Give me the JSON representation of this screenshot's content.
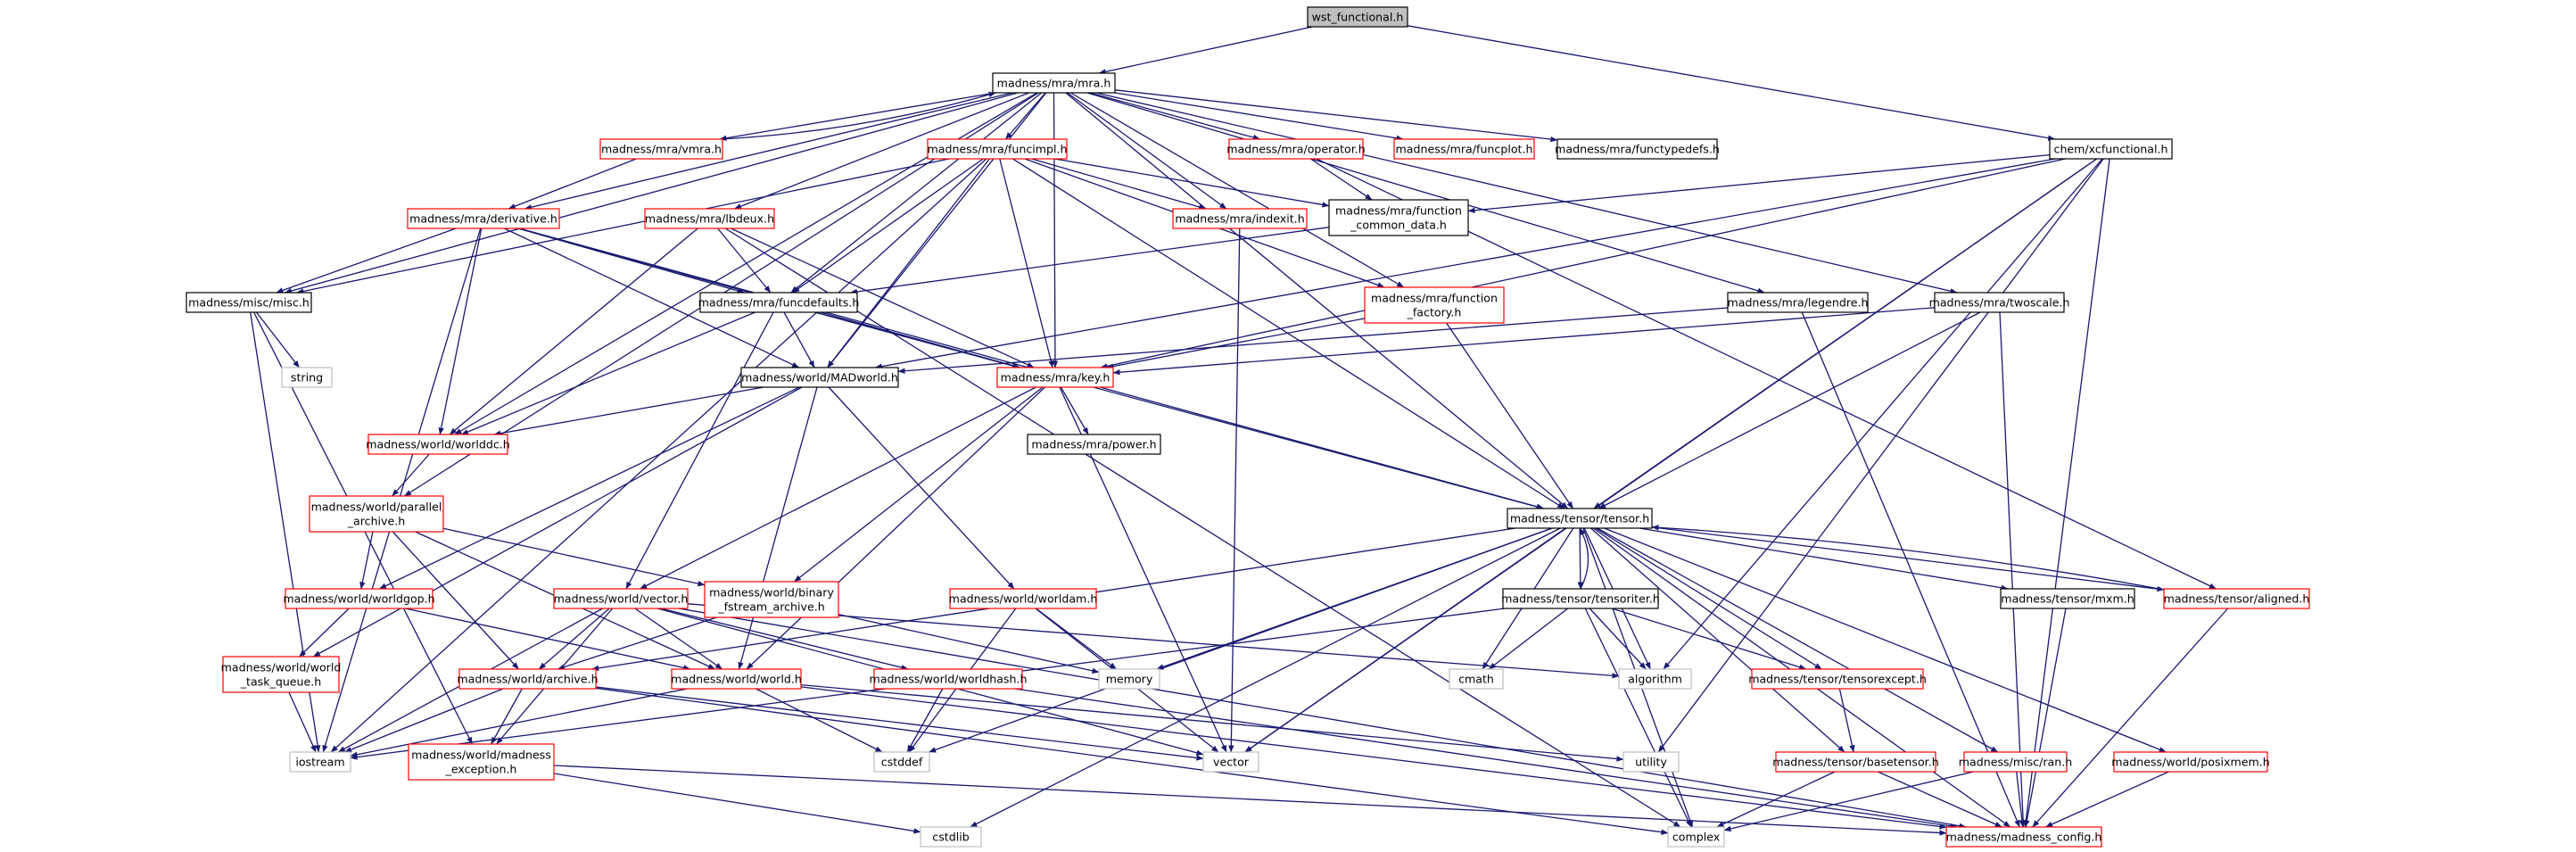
{
  "colors": {
    "edge": "#191970",
    "edge_secondary": "#a9a9a9",
    "border_normal": "#000000",
    "border_truncated": "#ff0000",
    "border_system": "#bfbfbf",
    "fill_root": "#bfbfbf",
    "fill_default": "#ffffff"
  },
  "nodes": [
    {
      "id": "wst_functional",
      "lines": [
        "wst_functional.h"
      ],
      "kind": "root"
    },
    {
      "id": "mra",
      "lines": [
        "madness/mra/mra.h"
      ],
      "kind": "normal"
    },
    {
      "id": "xcfunctional",
      "lines": [
        "chem/xcfunctional.h"
      ],
      "kind": "normal"
    },
    {
      "id": "vmra",
      "lines": [
        "madness/mra/vmra.h"
      ],
      "kind": "truncated"
    },
    {
      "id": "funcimpl",
      "lines": [
        "madness/mra/funcimpl.h"
      ],
      "kind": "truncated"
    },
    {
      "id": "operator",
      "lines": [
        "madness/mra/operator.h"
      ],
      "kind": "truncated"
    },
    {
      "id": "funcplot",
      "lines": [
        "madness/mra/funcplot.h"
      ],
      "kind": "truncated"
    },
    {
      "id": "functypedefs",
      "lines": [
        "madness/mra/functypedefs.h"
      ],
      "kind": "normal"
    },
    {
      "id": "derivative",
      "lines": [
        "madness/mra/derivative.h"
      ],
      "kind": "truncated"
    },
    {
      "id": "lbdeux",
      "lines": [
        "madness/mra/lbdeux.h"
      ],
      "kind": "truncated"
    },
    {
      "id": "indexit",
      "lines": [
        "madness/mra/indexit.h"
      ],
      "kind": "truncated"
    },
    {
      "id": "function_common_data",
      "lines": [
        "madness/mra/function",
        "_common_data.h"
      ],
      "kind": "normal"
    },
    {
      "id": "misc",
      "lines": [
        "madness/misc/misc.h"
      ],
      "kind": "normal"
    },
    {
      "id": "funcdefaults",
      "lines": [
        "madness/mra/funcdefaults.h"
      ],
      "kind": "normal"
    },
    {
      "id": "function_factory",
      "lines": [
        "madness/mra/function",
        "_factory.h"
      ],
      "kind": "truncated"
    },
    {
      "id": "legendre",
      "lines": [
        "madness/mra/legendre.h"
      ],
      "kind": "normal"
    },
    {
      "id": "twoscale",
      "lines": [
        "madness/mra/twoscale.h"
      ],
      "kind": "normal"
    },
    {
      "id": "string",
      "lines": [
        "string"
      ],
      "kind": "system"
    },
    {
      "id": "madworld",
      "lines": [
        "madness/world/MADworld.h"
      ],
      "kind": "normal"
    },
    {
      "id": "key",
      "lines": [
        "madness/mra/key.h"
      ],
      "kind": "truncated"
    },
    {
      "id": "worlddc",
      "lines": [
        "madness/world/worlddc.h"
      ],
      "kind": "truncated"
    },
    {
      "id": "power",
      "lines": [
        "madness/mra/power.h"
      ],
      "kind": "normal"
    },
    {
      "id": "parallel_archive",
      "lines": [
        "madness/world/parallel",
        "_archive.h"
      ],
      "kind": "truncated"
    },
    {
      "id": "tensor",
      "lines": [
        "madness/tensor/tensor.h"
      ],
      "kind": "normal"
    },
    {
      "id": "worldgop",
      "lines": [
        "madness/world/worldgop.h"
      ],
      "kind": "truncated"
    },
    {
      "id": "wvector",
      "lines": [
        "madness/world/vector.h"
      ],
      "kind": "truncated"
    },
    {
      "id": "binary_fstream",
      "lines": [
        "madness/world/binary",
        "_fstream_archive.h"
      ],
      "kind": "truncated"
    },
    {
      "id": "worldam",
      "lines": [
        "madness/world/worldam.h"
      ],
      "kind": "truncated"
    },
    {
      "id": "tensoriter",
      "lines": [
        "madness/tensor/tensoriter.h"
      ],
      "kind": "normal"
    },
    {
      "id": "mxm",
      "lines": [
        "madness/tensor/mxm.h"
      ],
      "kind": "normal"
    },
    {
      "id": "aligned",
      "lines": [
        "madness/tensor/aligned.h"
      ],
      "kind": "truncated"
    },
    {
      "id": "world_task_queue",
      "lines": [
        "madness/world/world",
        "_task_queue.h"
      ],
      "kind": "truncated"
    },
    {
      "id": "archive",
      "lines": [
        "madness/world/archive.h"
      ],
      "kind": "truncated"
    },
    {
      "id": "world",
      "lines": [
        "madness/world/world.h"
      ],
      "kind": "truncated"
    },
    {
      "id": "worldhash",
      "lines": [
        "madness/world/worldhash.h"
      ],
      "kind": "truncated"
    },
    {
      "id": "memory",
      "lines": [
        "memory"
      ],
      "kind": "system"
    },
    {
      "id": "cmath",
      "lines": [
        "cmath"
      ],
      "kind": "system"
    },
    {
      "id": "algorithm",
      "lines": [
        "algorithm"
      ],
      "kind": "system"
    },
    {
      "id": "tensorexcept",
      "lines": [
        "madness/tensor/tensorexcept.h"
      ],
      "kind": "truncated"
    },
    {
      "id": "iostream",
      "lines": [
        "iostream"
      ],
      "kind": "system"
    },
    {
      "id": "madness_exception",
      "lines": [
        "madness/world/madness",
        "_exception.h"
      ],
      "kind": "truncated"
    },
    {
      "id": "cstddef",
      "lines": [
        "cstddef"
      ],
      "kind": "system"
    },
    {
      "id": "vector",
      "lines": [
        "vector"
      ],
      "kind": "system"
    },
    {
      "id": "utility",
      "lines": [
        "utility"
      ],
      "kind": "system"
    },
    {
      "id": "basetensor",
      "lines": [
        "madness/tensor/basetensor.h"
      ],
      "kind": "truncated"
    },
    {
      "id": "ran",
      "lines": [
        "madness/misc/ran.h"
      ],
      "kind": "truncated"
    },
    {
      "id": "posixmem",
      "lines": [
        "madness/world/posixmem.h"
      ],
      "kind": "truncated"
    },
    {
      "id": "cstdlib",
      "lines": [
        "cstdlib"
      ],
      "kind": "system"
    },
    {
      "id": "complex",
      "lines": [
        "complex"
      ],
      "kind": "system"
    },
    {
      "id": "madness_config",
      "lines": [
        "madness/madness_config.h"
      ],
      "kind": "truncated"
    }
  ],
  "edges": [
    [
      "wst_functional",
      "mra"
    ],
    [
      "wst_functional",
      "xcfunctional"
    ],
    [
      "mra",
      "vmra"
    ],
    [
      "mra",
      "funcimpl"
    ],
    [
      "mra",
      "operator"
    ],
    [
      "mra",
      "funcplot"
    ],
    [
      "mra",
      "functypedefs"
    ],
    [
      "mra",
      "derivative"
    ],
    [
      "mra",
      "lbdeux"
    ],
    [
      "mra",
      "indexit"
    ],
    [
      "mra",
      "misc"
    ],
    [
      "mra",
      "funcdefaults"
    ],
    [
      "mra",
      "function_factory"
    ],
    [
      "mra",
      "legendre"
    ],
    [
      "mra",
      "twoscale"
    ],
    [
      "mra",
      "madworld"
    ],
    [
      "mra",
      "key"
    ],
    [
      "mra",
      "worlddc"
    ],
    [
      "mra",
      "parallel_archive"
    ],
    [
      "mra",
      "tensor"
    ],
    [
      "vmra",
      "mra"
    ],
    [
      "vmra",
      "derivative"
    ],
    [
      "funcimpl",
      "misc"
    ],
    [
      "funcimpl",
      "indexit"
    ],
    [
      "funcimpl",
      "function_common_data"
    ],
    [
      "funcimpl",
      "funcdefaults"
    ],
    [
      "funcimpl",
      "function_factory"
    ],
    [
      "funcimpl",
      "madworld"
    ],
    [
      "funcimpl",
      "key"
    ],
    [
      "funcimpl",
      "tensor"
    ],
    [
      "funcimpl",
      "iostream"
    ],
    [
      "operator",
      "function_common_data"
    ],
    [
      "operator",
      "aligned"
    ],
    [
      "derivative",
      "misc"
    ],
    [
      "derivative",
      "funcdefaults"
    ],
    [
      "derivative",
      "madworld"
    ],
    [
      "derivative",
      "key"
    ],
    [
      "derivative",
      "worlddc"
    ],
    [
      "derivative",
      "tensor"
    ],
    [
      "derivative",
      "iostream"
    ],
    [
      "lbdeux",
      "funcdefaults"
    ],
    [
      "lbdeux",
      "key"
    ],
    [
      "lbdeux",
      "worlddc"
    ],
    [
      "lbdeux",
      "complex"
    ],
    [
      "indexit",
      "vector"
    ],
    [
      "function_common_data",
      "funcdefaults"
    ],
    [
      "misc",
      "string"
    ],
    [
      "misc",
      "iostream"
    ],
    [
      "misc",
      "madness_exception"
    ],
    [
      "funcdefaults",
      "madworld"
    ],
    [
      "funcdefaults",
      "key"
    ],
    [
      "funcdefaults",
      "worlddc"
    ],
    [
      "funcdefaults",
      "wvector"
    ],
    [
      "funcdefaults",
      "tensor"
    ],
    [
      "function_factory",
      "key"
    ],
    [
      "function_factory",
      "tensor"
    ],
    [
      "legendre",
      "madworld"
    ],
    [
      "legendre",
      "madness_config"
    ],
    [
      "twoscale",
      "key"
    ],
    [
      "twoscale",
      "tensor"
    ],
    [
      "twoscale",
      "madness_config"
    ],
    [
      "xcfunctional",
      "function_common_data"
    ],
    [
      "xcfunctional",
      "madworld"
    ],
    [
      "xcfunctional",
      "key"
    ],
    [
      "xcfunctional",
      "tensor"
    ],
    [
      "xcfunctional",
      "algorithm"
    ],
    [
      "xcfunctional",
      "vector"
    ],
    [
      "xcfunctional",
      "utility"
    ],
    [
      "xcfunctional",
      "madness_config"
    ],
    [
      "madworld",
      "worlddc"
    ],
    [
      "madworld",
      "worldgop"
    ],
    [
      "madworld",
      "worldam"
    ],
    [
      "madworld",
      "world"
    ],
    [
      "madworld",
      "world_task_queue"
    ],
    [
      "key",
      "power"
    ],
    [
      "key",
      "wvector"
    ],
    [
      "key",
      "binary_fstream"
    ],
    [
      "key",
      "world"
    ],
    [
      "key",
      "vector"
    ],
    [
      "worlddc",
      "parallel_archive"
    ],
    [
      "parallel_archive",
      "worldgop"
    ],
    [
      "parallel_archive",
      "binary_fstream"
    ],
    [
      "parallel_archive",
      "archive"
    ],
    [
      "parallel_archive",
      "world"
    ],
    [
      "worldgop",
      "world_task_queue"
    ],
    [
      "worldgop",
      "world"
    ],
    [
      "wvector",
      "archive"
    ],
    [
      "wvector",
      "world"
    ],
    [
      "wvector",
      "worldhash"
    ],
    [
      "wvector",
      "iostream"
    ],
    [
      "wvector",
      "madness_exception"
    ],
    [
      "wvector",
      "madness_config"
    ],
    [
      "wvector",
      "algorithm"
    ],
    [
      "wvector",
      "vector"
    ],
    [
      "binary_fstream",
      "archive"
    ],
    [
      "binary_fstream",
      "memory"
    ],
    [
      "worldam",
      "memory"
    ],
    [
      "worldam",
      "vector"
    ],
    [
      "worldam",
      "cstddef"
    ],
    [
      "world_task_queue",
      "iostream"
    ],
    [
      "archive",
      "iostream"
    ],
    [
      "archive",
      "madness_exception"
    ],
    [
      "archive",
      "vector"
    ],
    [
      "archive",
      "complex"
    ],
    [
      "world",
      "iostream"
    ],
    [
      "world",
      "cstddef"
    ],
    [
      "world",
      "utility"
    ],
    [
      "world",
      "madness_config"
    ],
    [
      "worldhash",
      "cstddef"
    ],
    [
      "worldhash",
      "madness_config"
    ],
    [
      "madness_exception",
      "cstdlib"
    ],
    [
      "madness_exception",
      "madness_config"
    ],
    [
      "tensor",
      "tensoriter"
    ],
    [
      "tensor",
      "mxm"
    ],
    [
      "tensor",
      "aligned"
    ],
    [
      "tensor",
      "memory"
    ],
    [
      "tensor",
      "cmath"
    ],
    [
      "tensor",
      "algorithm"
    ],
    [
      "tensor",
      "tensorexcept"
    ],
    [
      "tensor",
      "archive"
    ],
    [
      "tensor",
      "cstddef"
    ],
    [
      "tensor",
      "vector"
    ],
    [
      "tensor",
      "basetensor"
    ],
    [
      "tensor",
      "ran"
    ],
    [
      "tensor",
      "posixmem"
    ],
    [
      "tensor",
      "cstdlib"
    ],
    [
      "tensor",
      "complex"
    ],
    [
      "tensor",
      "madness_config"
    ],
    [
      "tensoriter",
      "tensor"
    ],
    [
      "tensoriter",
      "cmath"
    ],
    [
      "tensoriter",
      "algorithm"
    ],
    [
      "tensoriter",
      "tensorexcept"
    ],
    [
      "tensoriter",
      "iostream"
    ],
    [
      "tensoriter",
      "complex"
    ],
    [
      "aligned",
      "tensor"
    ],
    [
      "aligned",
      "madness_config"
    ],
    [
      "mxm",
      "madness_config"
    ],
    [
      "tensorexcept",
      "basetensor"
    ],
    [
      "basetensor",
      "complex"
    ],
    [
      "basetensor",
      "madness_config"
    ],
    [
      "ran",
      "complex"
    ],
    [
      "ran",
      "madness_config"
    ],
    [
      "posixmem",
      "madness_config"
    ]
  ]
}
